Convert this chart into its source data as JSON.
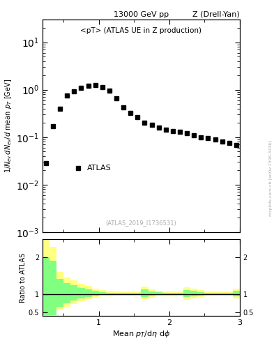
{
  "title_top": "13000 GeV pp",
  "title_right": "Z (Drell-Yan)",
  "main_title": "<pT> (ATLAS UE in Z production)",
  "ylabel_main": "$1/N_{ev}\\,dN_{ev}/d$ mean $p_T$ [GeV]",
  "ylabel_ratio": "Ratio to ATLAS",
  "xlabel": "Mean $p_T$/d$\\eta$ d$\\phi$",
  "watermark": "(ATLAS_2019_I1736531)",
  "side_text": "mcplots.cern.ch [arXiv:1306.3436]",
  "data_x": [
    0.25,
    0.35,
    0.45,
    0.55,
    0.65,
    0.75,
    0.85,
    0.95,
    1.05,
    1.15,
    1.25,
    1.35,
    1.45,
    1.55,
    1.65,
    1.75,
    1.85,
    1.95,
    2.05,
    2.15,
    2.25,
    2.35,
    2.45,
    2.55,
    2.65,
    2.75,
    2.85,
    2.95
  ],
  "data_y": [
    0.028,
    0.17,
    0.4,
    0.75,
    0.92,
    1.1,
    1.2,
    1.25,
    1.15,
    0.95,
    0.65,
    0.42,
    0.32,
    0.26,
    0.2,
    0.18,
    0.16,
    0.145,
    0.135,
    0.13,
    0.12,
    0.11,
    0.1,
    0.095,
    0.088,
    0.082,
    0.075,
    0.068
  ],
  "marker_size": 4,
  "ylim_main": [
    0.001,
    30
  ],
  "xlim": [
    0.2,
    3.0
  ],
  "ratio_x_edges": [
    0.2,
    0.3,
    0.4,
    0.5,
    0.6,
    0.7,
    0.8,
    0.9,
    1.0,
    1.1,
    1.2,
    1.3,
    1.4,
    1.5,
    1.6,
    1.7,
    1.8,
    1.9,
    2.0,
    2.1,
    2.2,
    2.3,
    2.4,
    2.5,
    2.6,
    2.7,
    2.8,
    2.9,
    3.0
  ],
  "ratio_yellow_lo": [
    0.35,
    0.35,
    0.55,
    0.65,
    0.72,
    0.8,
    0.86,
    0.9,
    0.93,
    0.94,
    0.95,
    0.95,
    0.95,
    0.96,
    0.86,
    0.9,
    0.93,
    0.94,
    0.94,
    0.95,
    0.84,
    0.88,
    0.92,
    0.94,
    0.95,
    0.95,
    0.95,
    0.87
  ],
  "ratio_yellow_hi": [
    2.5,
    2.3,
    1.6,
    1.45,
    1.38,
    1.28,
    1.22,
    1.15,
    1.1,
    1.08,
    1.07,
    1.07,
    1.07,
    1.07,
    1.2,
    1.12,
    1.08,
    1.07,
    1.07,
    1.07,
    1.18,
    1.15,
    1.1,
    1.07,
    1.07,
    1.07,
    1.07,
    1.15
  ],
  "ratio_green_lo": [
    0.42,
    0.42,
    0.65,
    0.75,
    0.82,
    0.88,
    0.92,
    0.95,
    0.97,
    0.97,
    0.97,
    0.97,
    0.97,
    0.97,
    0.92,
    0.95,
    0.97,
    0.97,
    0.97,
    0.97,
    0.92,
    0.93,
    0.96,
    0.97,
    0.97,
    0.97,
    0.97,
    0.93
  ],
  "ratio_green_hi": [
    2.0,
    1.9,
    1.42,
    1.3,
    1.24,
    1.17,
    1.12,
    1.08,
    1.05,
    1.04,
    1.04,
    1.04,
    1.04,
    1.04,
    1.12,
    1.07,
    1.05,
    1.04,
    1.04,
    1.04,
    1.1,
    1.08,
    1.05,
    1.04,
    1.04,
    1.04,
    1.04,
    1.08
  ],
  "yellow_color": "#ffff80",
  "green_color": "#80ff80",
  "ratio_ylim": [
    0.4,
    2.5
  ],
  "ratio_yticks": [
    0.5,
    1.0,
    2.0
  ],
  "ratio_ytick_labels": [
    "0.5",
    "1",
    "2"
  ],
  "xticks": [
    1,
    2,
    3
  ],
  "xtick_labels": [
    "1",
    "2",
    "3"
  ]
}
